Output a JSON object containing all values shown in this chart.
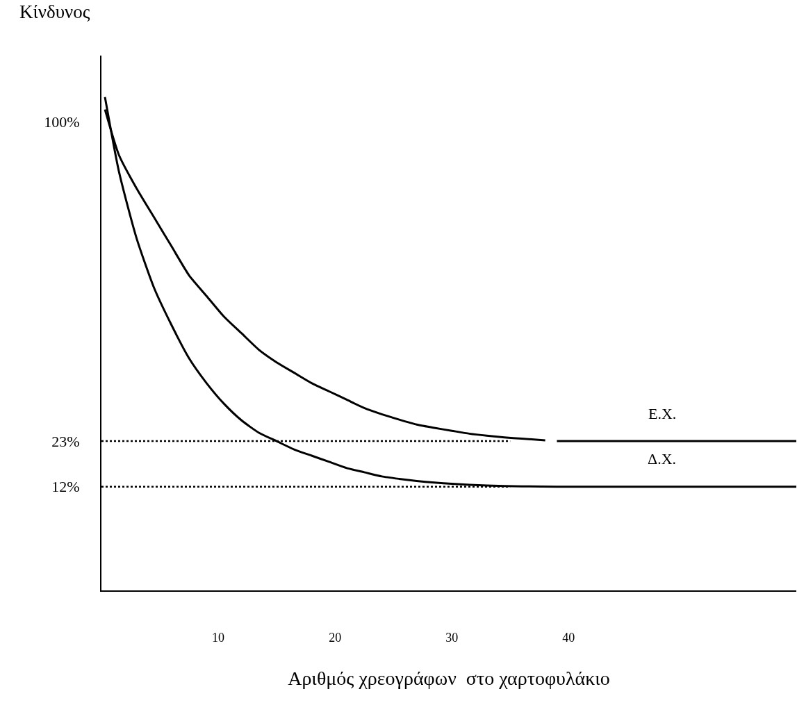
{
  "chart_data": {
    "type": "line",
    "xlabel": "Αριθμός χρεογράφων  στο χαρτοφυλάκιο",
    "ylabel": "Κίνδυνος",
    "xlim": [
      0,
      59.5
    ],
    "ylim": [
      -13,
      116
    ],
    "xticks": [
      10,
      20,
      30,
      40
    ],
    "yticks": [
      {
        "value": 100,
        "label": "100%"
      },
      {
        "value": 23,
        "label": "23%"
      },
      {
        "value": 12,
        "label": "12%"
      }
    ],
    "grid": false,
    "marker": "none",
    "series": [
      {
        "color": "#000000",
        "line_style": "solid",
        "x": [
          0.3,
          1.5,
          3,
          4.5,
          6,
          7.5,
          9,
          10.5,
          12,
          13.5,
          15,
          16.5,
          18,
          19.5,
          21,
          22.5,
          24,
          25.5,
          27,
          28.5,
          30,
          31.5,
          33,
          34.5,
          36,
          38,
          38.5,
          39,
          59.5
        ],
        "values": [
          103,
          92,
          84,
          77,
          70,
          63,
          58,
          53,
          49,
          45,
          42,
          39.5,
          37,
          35,
          33,
          31,
          29.5,
          28.2,
          27,
          26.2,
          25.5,
          24.8,
          24.3,
          23.9,
          23.6,
          23.2,
          null,
          23,
          23
        ]
      },
      {
        "color": "#000000",
        "line_style": "solid",
        "x": [
          0.3,
          1.5,
          3,
          4.5,
          6,
          7.5,
          9,
          10.5,
          12,
          13.5,
          15,
          16.5,
          18,
          19.5,
          21,
          22.5,
          24,
          25.5,
          27,
          28.5,
          30,
          33,
          36,
          39,
          59.5
        ],
        "values": [
          106,
          88,
          72,
          60,
          51,
          43,
          37,
          32,
          28,
          25,
          23,
          21,
          19.5,
          18,
          16.5,
          15.5,
          14.5,
          13.9,
          13.4,
          13,
          12.7,
          12.3,
          12.1,
          12,
          12
        ]
      },
      {
        "type": "line",
        "color": "#000000",
        "line_style": "dotted",
        "x": [
          0,
          35
        ],
        "values": [
          23,
          23
        ]
      },
      {
        "type": "line",
        "color": "#000000",
        "line_style": "dotted",
        "x": [
          0,
          35
        ],
        "values": [
          12,
          12
        ]
      }
    ],
    "annotations": [
      {
        "text": "Ε.Χ.",
        "x": 48,
        "y": 23
      },
      {
        "text": "Δ.Χ.",
        "x": 48,
        "y": 12
      }
    ]
  }
}
